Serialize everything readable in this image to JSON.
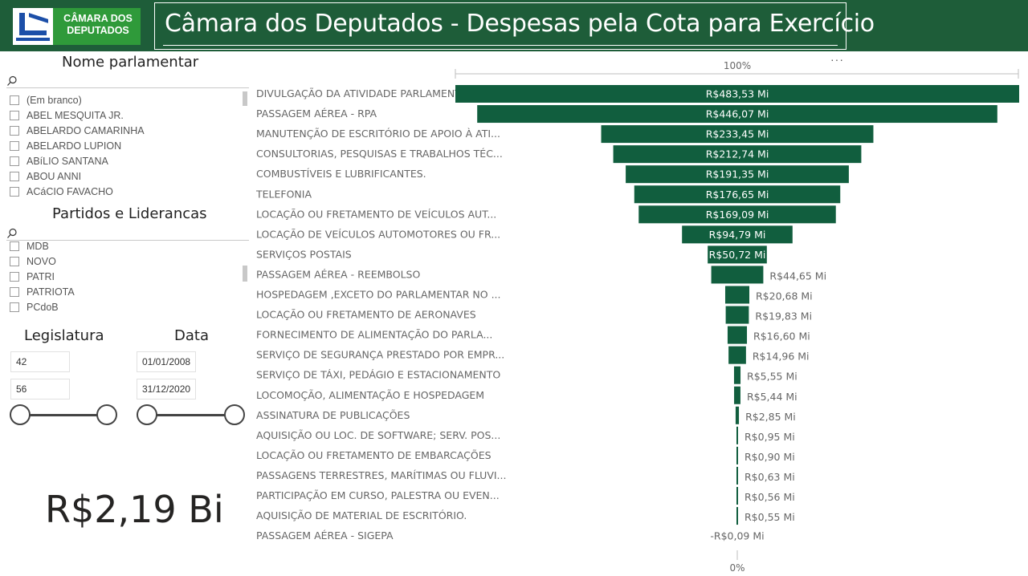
{
  "header": {
    "logo_line1": "CÂMARA DOS",
    "logo_line2": "DEPUTADOS",
    "title": "Câmara dos Deputados - Despesas pela Cota para Exercício"
  },
  "colors": {
    "brand": "#1e5d39",
    "bar": "#115e3e",
    "logo_green": "#2f9a3a",
    "logo_blue": "#1c4fa8"
  },
  "slicer_parlamentar": {
    "title": "Nome parlamentar",
    "search_icon": "search-icon",
    "items": [
      "(Em branco)",
      "ABEL MESQUITA JR.",
      "ABELARDO CAMARINHA",
      "ABELARDO LUPION",
      "ABíLIO SANTANA",
      "ABOU ANNI",
      "ACáCIO FAVACHO"
    ]
  },
  "slicer_partidos": {
    "title": "Partidos e Liderancas",
    "search_icon": "search-icon",
    "items": [
      "MDB",
      "NOVO",
      "PATRI",
      "PATRIOTA",
      "PCdoB"
    ]
  },
  "legislatura": {
    "title": "Legislatura",
    "min": "42",
    "max": "56"
  },
  "data": {
    "title": "Data",
    "start": "01/01/2008",
    "end": "31/12/2020"
  },
  "kpi": {
    "total": "R$2,19 Bi"
  },
  "chart": {
    "more_label": "···"
  },
  "chart_data": {
    "type": "bar",
    "subtype": "funnel",
    "top_axis_label": "100%",
    "bottom_axis_label": "0%",
    "categories": [
      "DIVULGAÇÃO DA ATIVIDADE PARLAMENTAR.",
      "PASSAGEM AÉREA - RPA",
      "MANUTENÇÃO DE ESCRITÓRIO DE APOIO À ATI...",
      "CONSULTORIAS, PESQUISAS E TRABALHOS TÉC...",
      "COMBUSTÍVEIS E LUBRIFICANTES.",
      "TELEFONIA",
      "LOCAÇÃO OU FRETAMENTO DE VEÍCULOS AUT...",
      "LOCAÇÃO DE VEÍCULOS AUTOMOTORES OU FR...",
      "SERVIÇOS POSTAIS",
      "PASSAGEM AÉREA - REEMBOLSO",
      "HOSPEDAGEM ,EXCETO DO PARLAMENTAR NO ...",
      "LOCAÇÃO OU FRETAMENTO DE AERONAVES",
      "FORNECIMENTO DE ALIMENTAÇÃO DO PARLA...",
      "SERVIÇO DE SEGURANÇA PRESTADO POR EMPR...",
      "SERVIÇO DE TÁXI, PEDÁGIO E ESTACIONAMENTO",
      "LOCOMOÇÃO, ALIMENTAÇÃO E HOSPEDAGEM",
      "ASSINATURA DE PUBLICAÇÕES",
      "AQUISIÇÃO OU LOC. DE SOFTWARE; SERV. POS...",
      "LOCAÇÃO OU FRETAMENTO DE EMBARCAÇÕES",
      "PASSAGENS TERRESTRES, MARÍTIMAS OU FLUVI...",
      "PARTICIPAÇÃO EM CURSO, PALESTRA OU EVEN...",
      "AQUISIÇÃO DE MATERIAL DE ESCRITÓRIO.",
      "PASSAGEM AÉREA - SIGEPA"
    ],
    "values": [
      483.53,
      446.07,
      233.45,
      212.74,
      191.35,
      176.65,
      169.09,
      94.79,
      50.72,
      44.65,
      20.68,
      19.83,
      16.6,
      14.96,
      5.55,
      5.44,
      2.85,
      0.95,
      0.9,
      0.63,
      0.56,
      0.55,
      -0.09
    ],
    "labels": [
      "R$483,53 Mi",
      "R$446,07 Mi",
      "R$233,45 Mi",
      "R$212,74 Mi",
      "R$191,35 Mi",
      "R$176,65 Mi",
      "R$169,09 Mi",
      "R$94,79 Mi",
      "R$50,72 Mi",
      "R$44,65 Mi",
      "R$20,68 Mi",
      "R$19,83 Mi",
      "R$16,60 Mi",
      "R$14,96 Mi",
      "R$5,55 Mi",
      "R$5,44 Mi",
      "R$2,85 Mi",
      "R$0,95 Mi",
      "R$0,90 Mi",
      "R$0,63 Mi",
      "R$0,56 Mi",
      "R$0,55 Mi",
      "-R$0,09 Mi"
    ]
  }
}
